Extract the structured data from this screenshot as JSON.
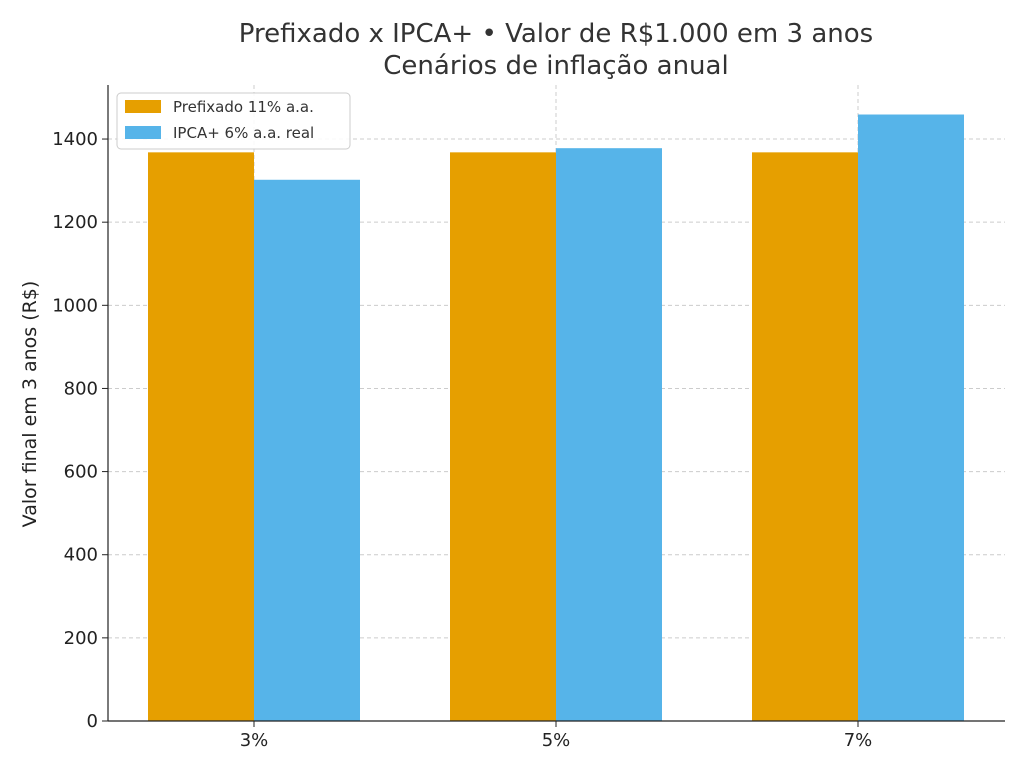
{
  "chart_data": {
    "type": "bar",
    "title": "Prefixado x IPCA+ • Valor de R$1.000 em 3 anos",
    "subtitle": "Cenários de inflação anual",
    "xlabel": "",
    "ylabel": "Valor final em 3 anos (R$)",
    "categories": [
      "3%",
      "5%",
      "7%"
    ],
    "series": [
      {
        "name": "Prefixado 11% a.a.",
        "color": "#E69F00",
        "values": [
          1368,
          1368,
          1368
        ]
      },
      {
        "name": "IPCA+ 6% a.a. real",
        "color": "#56B4E9",
        "values": [
          1302,
          1378,
          1459
        ]
      }
    ],
    "ylim": [
      0,
      1530
    ],
    "yticks": [
      0,
      200,
      400,
      600,
      800,
      1000,
      1200,
      1400
    ],
    "grid": true,
    "legend_position": "top-left"
  }
}
